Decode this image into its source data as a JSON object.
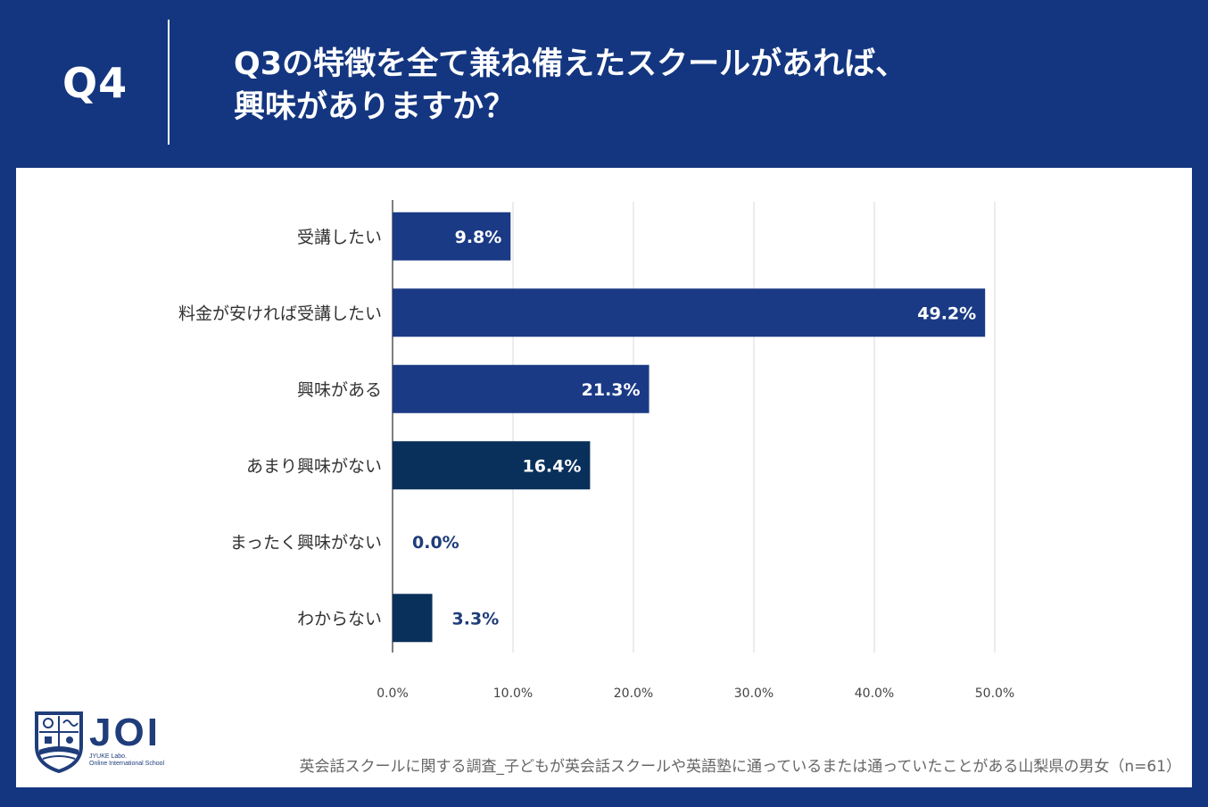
{
  "header": {
    "question_number": "Q4",
    "question_line1": "Q3の特徴を全て兼ね備えたスクールがあれば、",
    "question_line2": "興味がありますか？"
  },
  "chart_data": {
    "type": "bar",
    "orientation": "horizontal",
    "categories": [
      "受講したい",
      "料金が安ければ受講したい",
      "興味がある",
      "あまり興味がない",
      "まったく興味がない",
      "わからない"
    ],
    "values": [
      9.8,
      49.2,
      21.3,
      16.4,
      0.0,
      3.3
    ],
    "value_labels": [
      "9.8%",
      "49.2%",
      "21.3%",
      "16.4%",
      "0.0%",
      "3.3%"
    ],
    "bar_colors": [
      "#1b3a85",
      "#1b3a85",
      "#1b3a85",
      "#09305a",
      "#09305a",
      "#09305a"
    ],
    "outside_label_color": "#1f3d7a",
    "xlim": [
      0,
      50
    ],
    "x_ticks": [
      "0.0%",
      "10.0%",
      "20.0%",
      "30.0%",
      "40.0%",
      "50.0%"
    ],
    "grid": true,
    "title": "",
    "xlabel": "",
    "ylabel": ""
  },
  "footer": {
    "logo_text": "JOI",
    "logo_sub_line1": "JYUKE Labo.",
    "logo_sub_line2": "Online International School",
    "source": "英会話スクールに関する調査_子どもが英会話スクールや英語塾に通っているまたは通っていたことがある山梨県の男女（n=61）"
  },
  "colors": {
    "background": "#143680",
    "panel": "#ffffff",
    "grid": "#d9d9d9",
    "axis": "#555555"
  }
}
